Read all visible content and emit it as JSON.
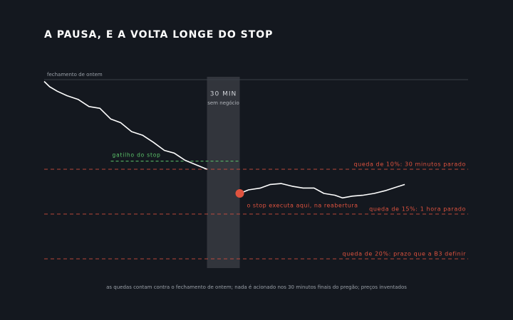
{
  "chart_data": {
    "type": "line",
    "title": "A PAUSA, E A VOLTA LONGE DO STOP",
    "reference": {
      "value": 0,
      "label": "fechamento de ontem"
    },
    "pause": {
      "range": [
        149,
        179
      ],
      "label": "30 MIN",
      "sublabel": "sem negócio"
    },
    "trigger": {
      "value": 9.1,
      "x": [
        61,
        179
      ],
      "label": "gatilho do stop",
      "color": "#5cc46a"
    },
    "levels": [
      {
        "value": 10,
        "label": "queda de 10%: 30 minutos parado"
      },
      {
        "value": 15,
        "label": "queda de 15%: 1 hora parado"
      },
      {
        "value": 20,
        "label": "queda de 20%: prazo que a B3 definir"
      }
    ],
    "level_color": "#e0533f",
    "execution": {
      "x": 179,
      "value": 12.7,
      "label": "o stop executa aqui, na reabertura",
      "color": "#e0533f"
    },
    "x": [
      0,
      5,
      12,
      21,
      31,
      41,
      51,
      61,
      70,
      80,
      90,
      100,
      110,
      119,
      129,
      139,
      149,
      164,
      179,
      187,
      198,
      207,
      217,
      227,
      237,
      247,
      256,
      266,
      273,
      282,
      292,
      302,
      312,
      322,
      330
    ],
    "values": [
      0.2,
      0.8,
      1.3,
      1.8,
      2.2,
      3.0,
      3.2,
      4.4,
      4.8,
      5.8,
      6.2,
      7.0,
      7.9,
      8.2,
      9.0,
      9.5,
      10.0,
      null,
      12.7,
      12.3,
      12.1,
      11.7,
      11.6,
      11.9,
      12.1,
      12.1,
      12.7,
      12.9,
      13.2,
      13.0,
      12.9,
      12.7,
      12.4,
      12.0,
      11.7
    ],
    "color": "#ffffff",
    "xlim": [
      0,
      388
    ],
    "ylim": [
      21,
      -0.6
    ],
    "note": "as quedas contam contra o fechamento de ontem; nada é acionado nos 30 minutos finais do pregão; preços inventados"
  }
}
